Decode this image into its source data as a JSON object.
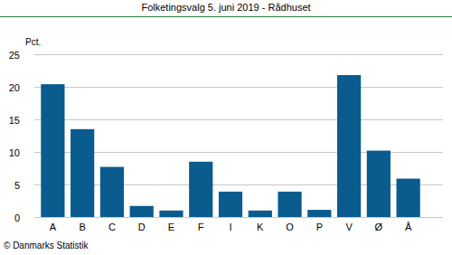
{
  "chart_data": {
    "type": "bar",
    "title": "Folketingsvalg 5. juni 2019 - Rådhuset",
    "ylabel": "Pct.",
    "source": "© Danmarks Statistik",
    "categories": [
      "A",
      "B",
      "C",
      "D",
      "E",
      "F",
      "I",
      "K",
      "O",
      "P",
      "V",
      "Ø",
      "Å"
    ],
    "values": [
      20.4,
      13.5,
      7.7,
      1.7,
      1.0,
      8.5,
      3.9,
      1.0,
      3.9,
      1.1,
      21.8,
      10.2,
      5.9
    ],
    "color": "#0a5c8f",
    "ylim": [
      0,
      25
    ],
    "yticks": [
      0,
      5,
      10,
      15,
      20,
      25
    ],
    "grid": true
  }
}
